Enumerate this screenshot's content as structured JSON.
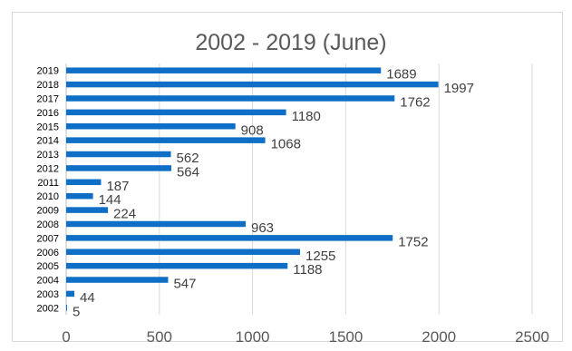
{
  "chart_data": {
    "type": "bar",
    "orientation": "horizontal",
    "title": "2002 - 2019 (June)",
    "categories": [
      "2019",
      "2018",
      "2017",
      "2016",
      "2015",
      "2014",
      "2013",
      "2012",
      "2011",
      "2010",
      "2009",
      "2008",
      "2007",
      "2006",
      "2005",
      "2004",
      "2003",
      "2002"
    ],
    "values": [
      1689,
      1997,
      1762,
      1180,
      908,
      1068,
      562,
      564,
      187,
      144,
      224,
      963,
      1752,
      1255,
      1188,
      547,
      44,
      5
    ],
    "xlim": [
      0,
      2500
    ],
    "xticks": [
      "0",
      "500",
      "1000",
      "1500",
      "2000",
      "2500"
    ],
    "grid": true,
    "bar_color": "#0f6fc6",
    "data_labels": true
  }
}
